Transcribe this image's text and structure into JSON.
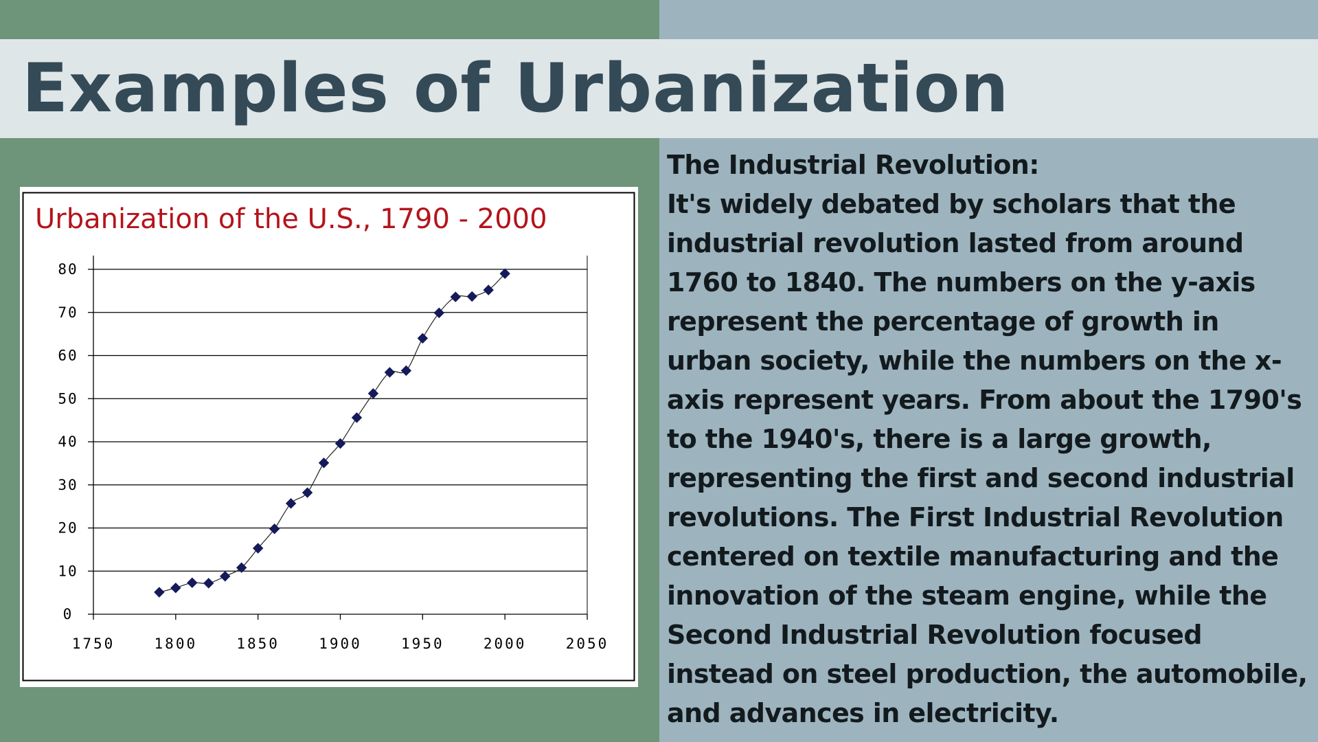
{
  "slide": {
    "title": "Examples of Urbanization",
    "heading": "The Industrial Revolution:",
    "body": "It's widely debated by scholars that the industrial revolution lasted from around 1760 to 1840. The numbers on the y-axis represent the percentage of growth in urban society, while the numbers on the x-axis represent years. From about the 1790's to the 1940's, there is a large growth, representing the first and second industrial revolutions. The First Industrial Revolution centered on textile manufacturing and the innovation of the steam engine, while the Second Industrial Revolution focused instead on steel production, the automobile, and advances in electricity."
  },
  "colors": {
    "background_left": "#6e947a",
    "background_right": "#9db4bf",
    "title_band": "#dfe6e8",
    "title_text": "#344a57",
    "chart_title": "#b3141c",
    "marker": "#141a5a"
  },
  "chart_data": {
    "type": "line",
    "title": "Urbanization of the U.S., 1790 - 2000",
    "xlabel": "",
    "ylabel": "",
    "xlim": [
      1750,
      2050
    ],
    "ylim": [
      0,
      80
    ],
    "xticks": [
      1750,
      1800,
      1850,
      1900,
      1950,
      2000,
      2050
    ],
    "yticks": [
      0,
      10,
      20,
      30,
      40,
      50,
      60,
      70,
      80
    ],
    "grid": "horizontal",
    "legend": "none",
    "marker": "diamond",
    "x": [
      1790,
      1800,
      1810,
      1820,
      1830,
      1840,
      1850,
      1860,
      1870,
      1880,
      1890,
      1900,
      1910,
      1920,
      1930,
      1940,
      1950,
      1960,
      1970,
      1980,
      1990,
      2000
    ],
    "y": [
      5.1,
      6.1,
      7.3,
      7.2,
      8.8,
      10.8,
      15.3,
      19.8,
      25.7,
      28.2,
      35.1,
      39.6,
      45.6,
      51.2,
      56.1,
      56.5,
      64.0,
      69.9,
      73.6,
      73.7,
      75.2,
      79.0
    ]
  }
}
